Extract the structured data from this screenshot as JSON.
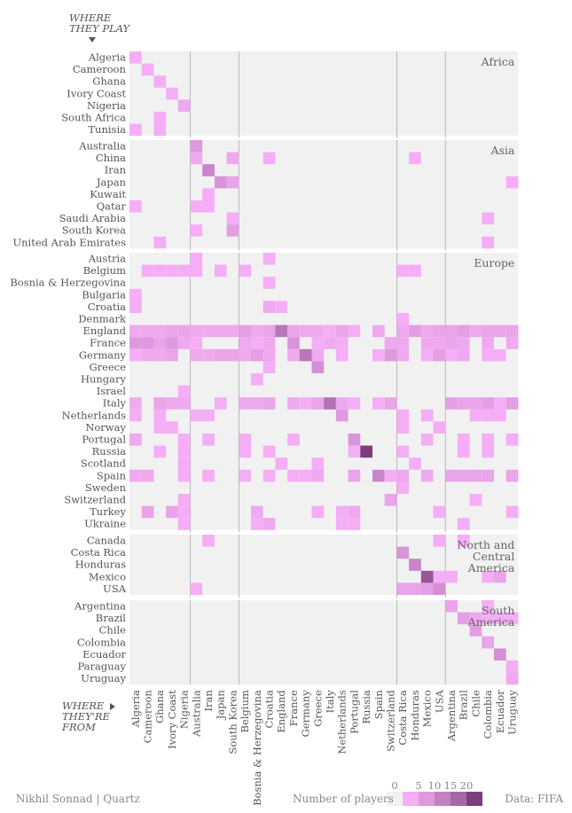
{
  "chart_data": {
    "type": "heatmap",
    "row_axis_title": [
      "WHERE",
      "THEY PLAY"
    ],
    "col_axis_title": [
      "WHERE",
      "THEY'RE",
      "FROM"
    ],
    "regions": [
      {
        "name": [
          "Africa"
        ],
        "rows": [
          "Algeria",
          "Cameroon",
          "Ghana",
          "Ivory Coast",
          "Nigeria",
          "South Africa",
          "Tunisia"
        ]
      },
      {
        "name": [
          "Asia"
        ],
        "rows": [
          "Australia",
          "China",
          "Iran",
          "Japan",
          "Kuwait",
          "Qatar",
          "Saudi Arabia",
          "South Korea",
          "United Arab Emirates"
        ]
      },
      {
        "name": [
          "Europe"
        ],
        "rows": [
          "Austria",
          "Belgium",
          "Bosnia & Herzegovina",
          "Bulgaria",
          "Croatia",
          "Denmark",
          "England",
          "France",
          "Germany",
          "Greece",
          "Hungary",
          "Israel",
          "Italy",
          "Netherlands",
          "Norway",
          "Portugal",
          "Russia",
          "Scotland",
          "Spain",
          "Sweden",
          "Switzerland",
          "Turkey",
          "Ukraine"
        ]
      },
      {
        "name": [
          "North and",
          "Central",
          "America"
        ],
        "rows": [
          "Canada",
          "Costa Rica",
          "Honduras",
          "Mexico",
          "USA"
        ]
      },
      {
        "name": [
          "South",
          "America"
        ],
        "rows": [
          "Argentina",
          "Brazil",
          "Chile",
          "Colombia",
          "Ecuador",
          "Paraguay",
          "Uruguay"
        ]
      }
    ],
    "columns": [
      "Algeria",
      "Cameroon",
      "Ghana",
      "Ivory Coast",
      "Nigeria",
      "Australia",
      "Iran",
      "Japan",
      "South Korea",
      "Belgium",
      "Bosnia & Herzegovina",
      "Croatia",
      "England",
      "France",
      "Germany",
      "Greece",
      "Italy",
      "Netherlands",
      "Portugal",
      "Russia",
      "Spain",
      "Switzerland",
      "Costa Rica",
      "Honduras",
      "Mexico",
      "USA",
      "Argentina",
      "Brazil",
      "Chile",
      "Colombia",
      "Ecuador",
      "Uruguay"
    ],
    "column_groups": [
      5,
      4,
      13,
      4,
      6
    ],
    "cells": [
      [
        "Algeria",
        "Algeria",
        1
      ],
      [
        "Cameroon",
        "Cameroon",
        1
      ],
      [
        "Ghana",
        "Ghana",
        1
      ],
      [
        "Ivory Coast",
        "Ivory Coast",
        1
      ],
      [
        "Nigeria",
        "Nigeria",
        2
      ],
      [
        "South Africa",
        "Ghana",
        1
      ],
      [
        "Tunisia",
        "Algeria",
        1
      ],
      [
        "Tunisia",
        "Ghana",
        1
      ],
      [
        "Australia",
        "Australia",
        5
      ],
      [
        "China",
        "Australia",
        2
      ],
      [
        "China",
        "South Korea",
        2
      ],
      [
        "China",
        "Croatia",
        1
      ],
      [
        "China",
        "Honduras",
        1
      ],
      [
        "Iran",
        "Iran",
        9
      ],
      [
        "Japan",
        "Japan",
        6
      ],
      [
        "Japan",
        "South Korea",
        3
      ],
      [
        "Japan",
        "Uruguay",
        1
      ],
      [
        "Kuwait",
        "Iran",
        1
      ],
      [
        "Qatar",
        "Algeria",
        1
      ],
      [
        "Qatar",
        "Australia",
        1
      ],
      [
        "Qatar",
        "Iran",
        1
      ],
      [
        "Saudi Arabia",
        "South Korea",
        1
      ],
      [
        "Saudi Arabia",
        "Colombia",
        1
      ],
      [
        "South Korea",
        "Australia",
        1
      ],
      [
        "South Korea",
        "South Korea",
        4
      ],
      [
        "United Arab Emirates",
        "Ghana",
        1
      ],
      [
        "United Arab Emirates",
        "Colombia",
        1
      ],
      [
        "Austria",
        "Australia",
        1
      ],
      [
        "Austria",
        "Croatia",
        1
      ],
      [
        "Belgium",
        "Cameroon",
        1
      ],
      [
        "Belgium",
        "Ghana",
        1
      ],
      [
        "Belgium",
        "Ivory Coast",
        1
      ],
      [
        "Belgium",
        "Nigeria",
        1
      ],
      [
        "Belgium",
        "Australia",
        1
      ],
      [
        "Belgium",
        "Japan",
        1
      ],
      [
        "Belgium",
        "Belgium",
        1
      ],
      [
        "Belgium",
        "Costa Rica",
        1
      ],
      [
        "Belgium",
        "Honduras",
        1
      ],
      [
        "Bosnia & Herzegovina",
        "Croatia",
        1
      ],
      [
        "Bulgaria",
        "Algeria",
        1
      ],
      [
        "Croatia",
        "Algeria",
        1
      ],
      [
        "Croatia",
        "Croatia",
        2
      ],
      [
        "Croatia",
        "England",
        1
      ],
      [
        "Denmark",
        "Costa Rica",
        1
      ],
      [
        "England",
        "Algeria",
        2
      ],
      [
        "England",
        "Cameroon",
        2
      ],
      [
        "England",
        "Ghana",
        2
      ],
      [
        "England",
        "Ivory Coast",
        3
      ],
      [
        "England",
        "Nigeria",
        3
      ],
      [
        "England",
        "Australia",
        2
      ],
      [
        "England",
        "Iran",
        2
      ],
      [
        "England",
        "Japan",
        2
      ],
      [
        "England",
        "South Korea",
        2
      ],
      [
        "England",
        "Belgium",
        4
      ],
      [
        "England",
        "Bosnia & Herzegovina",
        2
      ],
      [
        "England",
        "Croatia",
        3
      ],
      [
        "England",
        "England",
        12
      ],
      [
        "England",
        "France",
        3
      ],
      [
        "England",
        "Germany",
        2
      ],
      [
        "England",
        "Greece",
        2
      ],
      [
        "England",
        "Italy",
        1
      ],
      [
        "England",
        "Netherlands",
        3
      ],
      [
        "England",
        "Portugal",
        1
      ],
      [
        "England",
        "Spain",
        2
      ],
      [
        "England",
        "Costa Rica",
        2
      ],
      [
        "England",
        "Honduras",
        4
      ],
      [
        "England",
        "Mexico",
        2
      ],
      [
        "England",
        "USA",
        3
      ],
      [
        "England",
        "Argentina",
        3
      ],
      [
        "England",
        "Brazil",
        4
      ],
      [
        "England",
        "Chile",
        2
      ],
      [
        "England",
        "Colombia",
        3
      ],
      [
        "England",
        "Ecuador",
        3
      ],
      [
        "England",
        "Uruguay",
        3
      ],
      [
        "France",
        "Algeria",
        5
      ],
      [
        "France",
        "Cameroon",
        5
      ],
      [
        "France",
        "Ghana",
        3
      ],
      [
        "France",
        "Ivory Coast",
        5
      ],
      [
        "France",
        "Nigeria",
        2
      ],
      [
        "France",
        "Australia",
        1
      ],
      [
        "France",
        "Belgium",
        2
      ],
      [
        "France",
        "Bosnia & Herzegovina",
        1
      ],
      [
        "France",
        "Croatia",
        2
      ],
      [
        "France",
        "France",
        6
      ],
      [
        "France",
        "Greece",
        1
      ],
      [
        "France",
        "Italy",
        2
      ],
      [
        "France",
        "Netherlands",
        1
      ],
      [
        "France",
        "Switzerland",
        2
      ],
      [
        "France",
        "Costa Rica",
        2
      ],
      [
        "France",
        "Mexico",
        2
      ],
      [
        "France",
        "USA",
        2
      ],
      [
        "France",
        "Argentina",
        3
      ],
      [
        "France",
        "Brazil",
        2
      ],
      [
        "France",
        "Colombia",
        2
      ],
      [
        "France",
        "Uruguay",
        2
      ],
      [
        "Germany",
        "Algeria",
        1
      ],
      [
        "Germany",
        "Cameroon",
        2
      ],
      [
        "Germany",
        "Ghana",
        2
      ],
      [
        "Germany",
        "Ivory Coast",
        3
      ],
      [
        "Germany",
        "Australia",
        2
      ],
      [
        "Germany",
        "Iran",
        2
      ],
      [
        "Germany",
        "Japan",
        3
      ],
      [
        "Germany",
        "South Korea",
        3
      ],
      [
        "Germany",
        "Belgium",
        2
      ],
      [
        "Germany",
        "Bosnia & Herzegovina",
        4
      ],
      [
        "Germany",
        "Croatia",
        2
      ],
      [
        "Germany",
        "France",
        2
      ],
      [
        "Germany",
        "Germany",
        12
      ],
      [
        "Germany",
        "Greece",
        2
      ],
      [
        "Germany",
        "Netherlands",
        1
      ],
      [
        "Germany",
        "Spain",
        1
      ],
      [
        "Germany",
        "Switzerland",
        5
      ],
      [
        "Germany",
        "Costa Rica",
        2
      ],
      [
        "Germany",
        "Mexico",
        1
      ],
      [
        "Germany",
        "USA",
        4
      ],
      [
        "Germany",
        "Argentina",
        1
      ],
      [
        "Germany",
        "Brazil",
        2
      ],
      [
        "Germany",
        "Colombia",
        1
      ],
      [
        "Germany",
        "Ecuador",
        1
      ],
      [
        "Greece",
        "Croatia",
        1
      ],
      [
        "Greece",
        "Greece",
        7
      ],
      [
        "Hungary",
        "Bosnia & Herzegovina",
        1
      ],
      [
        "Israel",
        "Nigeria",
        1
      ],
      [
        "Italy",
        "Algeria",
        2
      ],
      [
        "Italy",
        "Ghana",
        3
      ],
      [
        "Italy",
        "Ivory Coast",
        2
      ],
      [
        "Italy",
        "Nigeria",
        2
      ],
      [
        "Italy",
        "Japan",
        1
      ],
      [
        "Italy",
        "Belgium",
        2
      ],
      [
        "Italy",
        "Bosnia & Herzegovina",
        2
      ],
      [
        "Italy",
        "Croatia",
        3
      ],
      [
        "Italy",
        "France",
        2
      ],
      [
        "Italy",
        "Germany",
        1
      ],
      [
        "Italy",
        "Greece",
        3
      ],
      [
        "Italy",
        "Italy",
        13
      ],
      [
        "Italy",
        "Netherlands",
        2
      ],
      [
        "Italy",
        "Portugal",
        1
      ],
      [
        "Italy",
        "Spain",
        1
      ],
      [
        "Italy",
        "Switzerland",
        3
      ],
      [
        "Italy",
        "Argentina",
        4
      ],
      [
        "Italy",
        "Brazil",
        3
      ],
      [
        "Italy",
        "Chile",
        3
      ],
      [
        "Italy",
        "Colombia",
        4
      ],
      [
        "Italy",
        "Ecuador",
        1
      ],
      [
        "Italy",
        "Uruguay",
        4
      ],
      [
        "Netherlands",
        "Algeria",
        1
      ],
      [
        "Netherlands",
        "Ghana",
        1
      ],
      [
        "Netherlands",
        "Australia",
        1
      ],
      [
        "Netherlands",
        "Iran",
        1
      ],
      [
        "Netherlands",
        "Netherlands",
        5
      ],
      [
        "Netherlands",
        "Costa Rica",
        1
      ],
      [
        "Netherlands",
        "Mexico",
        1
      ],
      [
        "Netherlands",
        "Chile",
        1
      ],
      [
        "Netherlands",
        "Colombia",
        1
      ],
      [
        "Netherlands",
        "Ecuador",
        1
      ],
      [
        "Norway",
        "Ghana",
        1
      ],
      [
        "Norway",
        "Ivory Coast",
        1
      ],
      [
        "Norway",
        "Costa Rica",
        1
      ],
      [
        "Norway",
        "USA",
        1
      ],
      [
        "Portugal",
        "Algeria",
        2
      ],
      [
        "Portugal",
        "Nigeria",
        1
      ],
      [
        "Portugal",
        "Iran",
        1
      ],
      [
        "Portugal",
        "Belgium",
        1
      ],
      [
        "Portugal",
        "France",
        1
      ],
      [
        "Portugal",
        "Portugal",
        6
      ],
      [
        "Portugal",
        "Mexico",
        1
      ],
      [
        "Portugal",
        "Brazil",
        1
      ],
      [
        "Portugal",
        "Colombia",
        1
      ],
      [
        "Portugal",
        "Uruguay",
        1
      ],
      [
        "Russia",
        "Ghana",
        1
      ],
      [
        "Russia",
        "Nigeria",
        1
      ],
      [
        "Russia",
        "Belgium",
        1
      ],
      [
        "Russia",
        "Croatia",
        1
      ],
      [
        "Russia",
        "Portugal",
        1
      ],
      [
        "Russia",
        "Russia",
        23
      ],
      [
        "Russia",
        "Costa Rica",
        1
      ],
      [
        "Russia",
        "Brazil",
        1
      ],
      [
        "Russia",
        "Colombia",
        1
      ],
      [
        "Scotland",
        "Nigeria",
        1
      ],
      [
        "Scotland",
        "England",
        1
      ],
      [
        "Scotland",
        "Greece",
        1
      ],
      [
        "Scotland",
        "Honduras",
        1
      ],
      [
        "Spain",
        "Algeria",
        2
      ],
      [
        "Spain",
        "Cameroon",
        2
      ],
      [
        "Spain",
        "Nigeria",
        1
      ],
      [
        "Spain",
        "Iran",
        1
      ],
      [
        "Spain",
        "Belgium",
        1
      ],
      [
        "Spain",
        "Croatia",
        1
      ],
      [
        "Spain",
        "France",
        1
      ],
      [
        "Spain",
        "Germany",
        1
      ],
      [
        "Spain",
        "Greece",
        2
      ],
      [
        "Spain",
        "Portugal",
        3
      ],
      [
        "Spain",
        "Spain",
        9
      ],
      [
        "Spain",
        "Switzerland",
        1
      ],
      [
        "Spain",
        "Costa Rica",
        2
      ],
      [
        "Spain",
        "Mexico",
        2
      ],
      [
        "Spain",
        "Argentina",
        3
      ],
      [
        "Spain",
        "Brazil",
        3
      ],
      [
        "Spain",
        "Chile",
        3
      ],
      [
        "Spain",
        "Colombia",
        3
      ],
      [
        "Spain",
        "Uruguay",
        3
      ],
      [
        "Sweden",
        "Costa Rica",
        1
      ],
      [
        "Switzerland",
        "Switzerland",
        3
      ],
      [
        "Switzerland",
        "Nigeria",
        1
      ],
      [
        "Switzerland",
        "Chile",
        1
      ],
      [
        "Turkey",
        "Cameroon",
        3
      ],
      [
        "Turkey",
        "Ivory Coast",
        3
      ],
      [
        "Turkey",
        "Nigeria",
        1
      ],
      [
        "Turkey",
        "Bosnia & Herzegovina",
        2
      ],
      [
        "Turkey",
        "Greece",
        1
      ],
      [
        "Turkey",
        "Netherlands",
        1
      ],
      [
        "Turkey",
        "Portugal",
        2
      ],
      [
        "Turkey",
        "USA",
        1
      ],
      [
        "Turkey",
        "Uruguay",
        1
      ],
      [
        "Ukraine",
        "Nigeria",
        1
      ],
      [
        "Ukraine",
        "Bosnia & Herzegovina",
        1
      ],
      [
        "Ukraine",
        "Croatia",
        2
      ],
      [
        "Ukraine",
        "Netherlands",
        1
      ],
      [
        "Ukraine",
        "Portugal",
        1
      ],
      [
        "Ukraine",
        "Brazil",
        1
      ],
      [
        "Canada",
        "Iran",
        1
      ],
      [
        "Canada",
        "USA",
        1
      ],
      [
        "Canada",
        "Brazil",
        1
      ],
      [
        "Costa Rica",
        "Costa Rica",
        6
      ],
      [
        "Honduras",
        "Honduras",
        9
      ],
      [
        "Mexico",
        "Mexico",
        18
      ],
      [
        "Mexico",
        "USA",
        1
      ],
      [
        "Mexico",
        "Argentina",
        1
      ],
      [
        "Mexico",
        "Colombia",
        1
      ],
      [
        "Mexico",
        "Ecuador",
        3
      ],
      [
        "USA",
        "Australia",
        1
      ],
      [
        "USA",
        "Costa Rica",
        3
      ],
      [
        "USA",
        "Honduras",
        3
      ],
      [
        "USA",
        "Mexico",
        4
      ],
      [
        "USA",
        "USA",
        7
      ],
      [
        "Argentina",
        "Argentina",
        3
      ],
      [
        "Argentina",
        "Colombia",
        1
      ],
      [
        "Brazil",
        "Brazil",
        4
      ],
      [
        "Brazil",
        "Chile",
        2
      ],
      [
        "Brazil",
        "Colombia",
        1
      ],
      [
        "Brazil",
        "Ecuador",
        1
      ],
      [
        "Brazil",
        "Uruguay",
        1
      ],
      [
        "Chile",
        "Chile",
        4
      ],
      [
        "Colombia",
        "Colombia",
        3
      ],
      [
        "Ecuador",
        "Ecuador",
        7
      ],
      [
        "Paraguay",
        "Uruguay",
        1
      ],
      [
        "Uruguay",
        "Uruguay",
        2
      ]
    ],
    "legend": {
      "title": "Number of players",
      "ticks": [
        "0",
        "5",
        "10",
        "15",
        "20"
      ]
    },
    "colors": {
      "empty": "#f1f1f1",
      "light": "#f5aef5",
      "dark": "#7b3e7b",
      "separator": "#ffffff",
      "guide": "#aaaaaa"
    }
  },
  "footer": {
    "credit": "Nikhil Sonnad | Quartz",
    "source": "Data: FIFA"
  }
}
